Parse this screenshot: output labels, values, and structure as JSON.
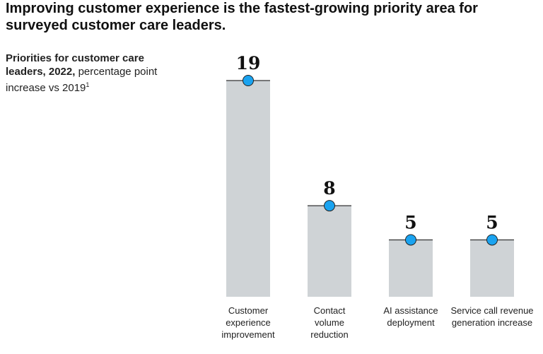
{
  "chart_data": {
    "type": "bar",
    "title": "Improving customer experience is the fastest-growing priority area for surveyed customer care leaders.",
    "subtitle_bold": "Priorities for customer care leaders, 2022,",
    "subtitle": "percentage point increase vs 2019",
    "footnote_marker": "1",
    "categories": [
      "Customer experience improvement",
      "Contact volume reduction",
      "AI assistance deployment",
      "Service call revenue generation increase"
    ],
    "values": [
      19,
      8,
      5,
      5
    ],
    "color": "#cfd3d6",
    "marker_color": "#1aa3f0"
  }
}
